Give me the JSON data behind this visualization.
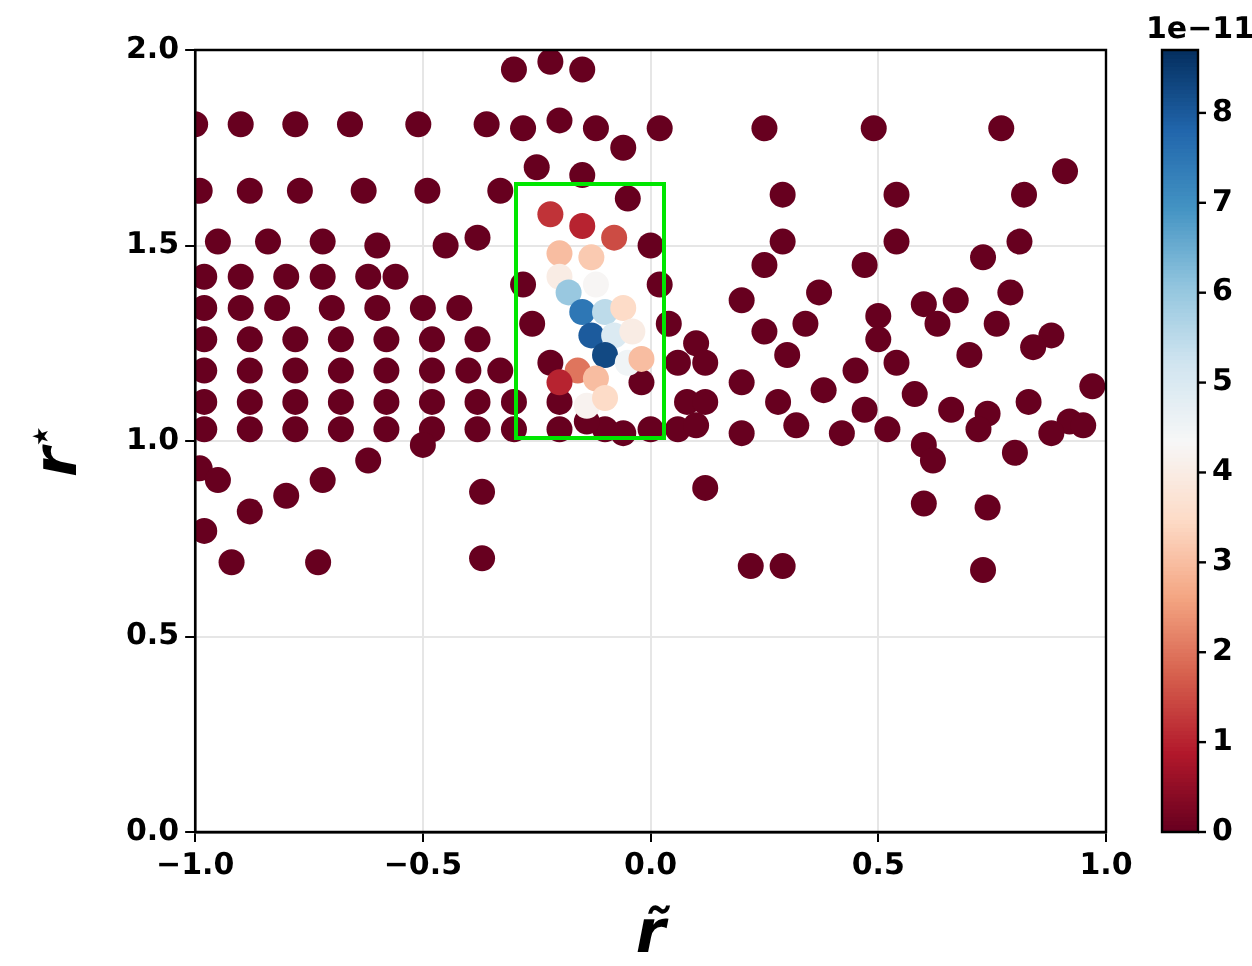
{
  "chart_data": {
    "type": "scatter",
    "xlabel": "r̃",
    "ylabel": "r$^{⋆}$",
    "annotations": [
      "1e−11"
    ],
    "xlim": [
      -1,
      1
    ],
    "ylim": [
      0,
      2
    ],
    "xticks": [
      {
        "value": -1,
        "label": "−1.0"
      },
      {
        "value": -0.5,
        "label": "−0.5"
      },
      {
        "value": 0,
        "label": "0.0"
      },
      {
        "value": 0.5,
        "label": "0.5"
      },
      {
        "value": 1,
        "label": "1.0"
      }
    ],
    "yticks": [
      {
        "value": 0,
        "label": "0.0"
      },
      {
        "value": 0.5,
        "label": "0.5"
      },
      {
        "value": 1,
        "label": "1.0"
      },
      {
        "value": 1.5,
        "label": "1.5"
      },
      {
        "value": 2,
        "label": "2.0"
      }
    ],
    "clim": [
      0,
      8.7
    ],
    "cticks": [
      0,
      1,
      2,
      3,
      4,
      5,
      6,
      7,
      8
    ],
    "grid": true,
    "marker": "circle",
    "x": [
      -1.0,
      -0.9,
      -0.78,
      -0.66,
      -0.51,
      -0.36,
      0.02,
      0.25,
      0.49,
      0.77,
      -0.99,
      -0.88,
      -0.77,
      -0.63,
      -0.49,
      -0.33,
      0.29,
      0.54,
      0.82,
      0.91,
      -0.95,
      -0.84,
      -0.72,
      -0.6,
      -0.45,
      -0.38,
      0.29,
      0.54,
      0.81,
      -0.98,
      -0.9,
      -0.8,
      -0.72,
      -0.62,
      -0.56,
      -0.98,
      -0.9,
      -0.82,
      -0.7,
      -0.6,
      -0.5,
      -0.42,
      -0.98,
      -0.88,
      -0.78,
      -0.68,
      -0.58,
      -0.48,
      -0.38,
      -0.98,
      -0.88,
      -0.78,
      -0.68,
      -0.58,
      -0.48,
      -0.4,
      -0.33,
      -0.98,
      -0.88,
      -0.78,
      -0.68,
      -0.58,
      -0.48,
      -0.38,
      -0.3,
      -0.98,
      -0.88,
      -0.78,
      -0.68,
      -0.58,
      -0.48,
      -0.38,
      -0.3,
      -0.2,
      -0.1,
      0.0,
      0.06,
      -0.99,
      -0.95,
      -0.88,
      -0.8,
      -0.72,
      -0.62,
      -0.5,
      -0.98,
      -0.92,
      -0.37,
      -0.3,
      -0.22,
      -0.15,
      -0.28,
      -0.2,
      -0.12,
      -0.06,
      -0.25,
      -0.15,
      -0.05,
      0.0,
      0.02,
      0.04,
      0.06,
      0.08,
      -0.28,
      -0.26,
      -0.22,
      -0.2,
      -0.14,
      -0.06,
      -0.02,
      0.25,
      0.47,
      0.73,
      0.2,
      0.37,
      0.5,
      0.6,
      0.67,
      0.79,
      0.1,
      0.25,
      0.34,
      0.5,
      0.63,
      0.76,
      0.88,
      0.12,
      0.3,
      0.45,
      0.54,
      0.7,
      0.84,
      0.97,
      0.12,
      0.2,
      0.28,
      0.38,
      0.47,
      0.58,
      0.66,
      0.74,
      0.83,
      0.92,
      0.1,
      0.2,
      0.32,
      0.42,
      0.52,
      0.6,
      0.72,
      0.88,
      0.95,
      0.8,
      0.62,
      0.12,
      0.74,
      0.6,
      0.22,
      0.29,
      0.73,
      -0.37,
      -0.73,
      -0.22,
      -0.15,
      -0.08,
      -0.2,
      -0.13,
      -0.2,
      -0.18,
      -0.12,
      -0.15,
      -0.1,
      -0.06,
      -0.13,
      -0.08,
      -0.04,
      -0.1,
      -0.05,
      -0.02,
      -0.16,
      -0.12,
      -0.14,
      -0.1,
      -0.2
    ],
    "values": [
      1.81,
      1.81,
      1.81,
      1.81,
      1.81,
      1.81,
      1.8,
      1.8,
      1.8,
      1.8,
      1.64,
      1.64,
      1.64,
      1.64,
      1.64,
      1.64,
      1.63,
      1.63,
      1.63,
      1.69,
      1.51,
      1.51,
      1.51,
      1.5,
      1.5,
      1.52,
      1.51,
      1.51,
      1.51,
      1.42,
      1.42,
      1.42,
      1.42,
      1.42,
      1.42,
      1.34,
      1.34,
      1.34,
      1.34,
      1.34,
      1.34,
      1.34,
      1.26,
      1.26,
      1.26,
      1.26,
      1.26,
      1.26,
      1.26,
      1.18,
      1.18,
      1.18,
      1.18,
      1.18,
      1.18,
      1.18,
      1.18,
      1.1,
      1.1,
      1.1,
      1.1,
      1.1,
      1.1,
      1.1,
      1.1,
      1.03,
      1.03,
      1.03,
      1.03,
      1.03,
      1.03,
      1.03,
      1.03,
      1.03,
      1.03,
      1.03,
      1.03,
      0.93,
      0.9,
      0.82,
      0.86,
      0.9,
      0.95,
      0.99,
      0.77,
      0.69,
      0.87,
      1.95,
      1.97,
      1.95,
      1.8,
      1.82,
      1.8,
      1.75,
      1.7,
      1.68,
      1.62,
      1.5,
      1.4,
      1.3,
      1.2,
      1.1,
      1.4,
      1.3,
      1.2,
      1.1,
      1.05,
      1.02,
      1.15,
      1.45,
      1.45,
      1.47,
      1.36,
      1.38,
      1.32,
      1.35,
      1.36,
      1.38,
      1.25,
      1.28,
      1.3,
      1.26,
      1.3,
      1.3,
      1.27,
      1.2,
      1.22,
      1.18,
      1.2,
      1.22,
      1.24,
      1.14,
      1.1,
      1.15,
      1.1,
      1.13,
      1.08,
      1.12,
      1.08,
      1.07,
      1.1,
      1.05,
      1.04,
      1.02,
      1.04,
      1.02,
      1.03,
      0.99,
      1.03,
      1.02,
      1.04,
      0.97,
      0.95,
      0.88,
      0.83,
      0.84,
      0.68,
      0.68,
      0.67,
      0.7,
      0.69,
      1.58,
      1.55,
      1.52,
      1.48,
      1.47,
      1.42,
      1.38,
      1.4,
      1.33,
      1.33,
      1.34,
      1.27,
      1.27,
      1.28,
      1.22,
      1.2,
      1.21,
      1.18,
      1.16,
      1.09,
      1.11,
      1.15
    ],
    "cvalues": [
      0,
      0,
      0,
      0,
      0,
      0,
      0,
      0,
      0,
      0,
      0,
      0,
      0,
      0,
      0,
      0,
      0,
      0,
      0,
      0,
      0,
      0,
      0,
      0,
      0,
      0,
      0,
      0,
      0,
      0,
      0,
      0,
      0,
      0,
      0,
      0,
      0,
      0,
      0,
      0,
      0,
      0,
      0,
      0,
      0,
      0,
      0,
      0,
      0,
      0,
      0,
      0,
      0,
      0,
      0,
      0,
      0,
      0,
      0,
      0,
      0,
      0,
      0,
      0,
      0,
      0,
      0,
      0,
      0,
      0,
      0,
      0,
      0,
      0,
      0,
      0,
      0,
      0,
      0,
      0,
      0,
      0,
      0,
      0,
      0,
      0,
      0,
      0,
      0,
      0,
      0,
      0,
      0,
      0,
      0,
      0,
      0,
      0,
      0,
      0,
      0,
      0,
      0,
      0,
      0,
      0,
      0,
      0,
      0,
      0,
      0,
      0,
      0,
      0,
      0,
      0,
      0,
      0,
      0,
      0,
      0,
      0,
      0,
      0,
      0,
      0,
      0,
      0,
      0,
      0,
      0,
      0,
      0,
      0,
      0,
      0,
      0,
      0,
      0,
      0,
      0,
      0,
      0,
      0,
      0,
      0,
      0,
      0,
      0,
      0,
      0,
      0,
      0,
      0,
      0,
      0,
      0,
      0,
      0,
      0,
      0,
      1.2,
      1.0,
      1.5,
      3.0,
      3.2,
      4.0,
      6.0,
      4.3,
      7.5,
      5.5,
      3.5,
      8.0,
      5.0,
      4.0,
      8.3,
      4.5,
      3.0,
      2.0,
      3.0,
      4.2,
      3.5,
      1.0
    ]
  }
}
